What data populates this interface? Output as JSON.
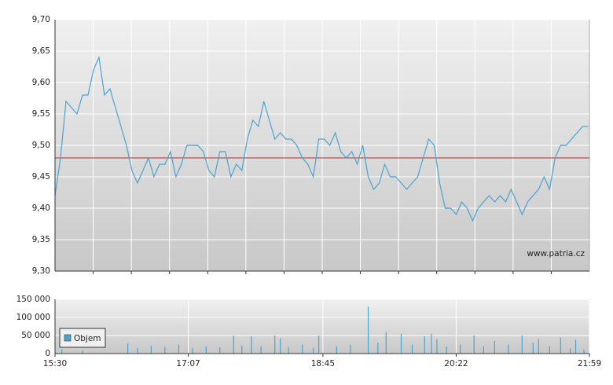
{
  "chart_data": [
    {
      "type": "line",
      "x": [
        930,
        934,
        938,
        942,
        946,
        950,
        954,
        958,
        962,
        966,
        970,
        974,
        978,
        982,
        986,
        990,
        994,
        998,
        1002,
        1006,
        1010,
        1014,
        1018,
        1022,
        1026,
        1030,
        1034,
        1038,
        1042,
        1046,
        1050,
        1054,
        1058,
        1062,
        1066,
        1070,
        1074,
        1078,
        1082,
        1086,
        1090,
        1094,
        1098,
        1102,
        1106,
        1110,
        1114,
        1118,
        1122,
        1126,
        1130,
        1134,
        1138,
        1142,
        1146,
        1150,
        1154,
        1158,
        1162,
        1166,
        1170,
        1174,
        1178,
        1182,
        1186,
        1190,
        1194,
        1198,
        1202,
        1206,
        1210,
        1214,
        1218,
        1222,
        1226,
        1230,
        1234,
        1238,
        1242,
        1246,
        1250,
        1254,
        1258,
        1262,
        1266,
        1270,
        1274,
        1278,
        1282,
        1286,
        1290,
        1294,
        1298,
        1302,
        1306,
        1310,
        1314,
        1318
      ],
      "series": [
        {
          "color": "#4ba3cf",
          "values": [
            9.42,
            9.48,
            9.57,
            9.56,
            9.55,
            9.58,
            9.58,
            9.62,
            9.64,
            9.58,
            9.59,
            9.56,
            9.53,
            9.5,
            9.46,
            9.44,
            9.46,
            9.48,
            9.45,
            9.47,
            9.47,
            9.49,
            9.45,
            9.47,
            9.5,
            9.5,
            9.5,
            9.49,
            9.46,
            9.45,
            9.49,
            9.49,
            9.45,
            9.47,
            9.46,
            9.51,
            9.54,
            9.53,
            9.57,
            9.54,
            9.51,
            9.52,
            9.51,
            9.51,
            9.5,
            9.48,
            9.47,
            9.45,
            9.51,
            9.51,
            9.5,
            9.52,
            9.49,
            9.48,
            9.49,
            9.47,
            9.5,
            9.45,
            9.43,
            9.44,
            9.47,
            9.45,
            9.45,
            9.44,
            9.43,
            9.44,
            9.45,
            9.48,
            9.51,
            9.5,
            9.44,
            9.4,
            9.4,
            9.39,
            9.41,
            9.4,
            9.38,
            9.4,
            9.41,
            9.42,
            9.41,
            9.42,
            9.41,
            9.43,
            9.41,
            9.39,
            9.41,
            9.42,
            9.43,
            9.45,
            9.43,
            9.48,
            9.5,
            9.5,
            9.51,
            9.52,
            9.53,
            9.53
          ]
        }
      ],
      "reference_line": 9.48,
      "reference_color": "#cc2222",
      "annotation": "www.patria.cz",
      "xlim": [
        930,
        1319
      ],
      "ylim": [
        9.3,
        9.7
      ],
      "yticks": [
        {
          "value": 9.3,
          "label": "9,30"
        },
        {
          "value": 9.35,
          "label": "9,35"
        },
        {
          "value": 9.4,
          "label": "9,40"
        },
        {
          "value": 9.45,
          "label": "9,45"
        },
        {
          "value": 9.5,
          "label": "9,50"
        },
        {
          "value": 9.55,
          "label": "9,55"
        },
        {
          "value": 9.6,
          "label": "9,60"
        },
        {
          "value": 9.65,
          "label": "9,65"
        },
        {
          "value": 9.7,
          "label": "9,70"
        }
      ],
      "grid": true
    },
    {
      "type": "bar",
      "x": [
        935,
        950,
        983,
        990,
        1000,
        1010,
        1020,
        1030,
        1040,
        1050,
        1060,
        1066,
        1073,
        1080,
        1090,
        1094,
        1100,
        1110,
        1118,
        1122,
        1135,
        1145,
        1158,
        1165,
        1171,
        1182,
        1190,
        1199,
        1204,
        1208,
        1215,
        1225,
        1235,
        1242,
        1250,
        1260,
        1270,
        1278,
        1282,
        1290,
        1298,
        1305,
        1309,
        1315
      ],
      "series": [
        {
          "name": "Objem",
          "color": "#4ba3cf",
          "values": [
            12000,
            8000,
            28000,
            15000,
            22000,
            18000,
            25000,
            15000,
            20000,
            18000,
            50000,
            22000,
            48000,
            20000,
            50000,
            42000,
            18000,
            25000,
            15000,
            50000,
            20000,
            25000,
            130000,
            30000,
            60000,
            55000,
            25000,
            48000,
            55000,
            40000,
            20000,
            25000,
            50000,
            20000,
            35000,
            25000,
            50000,
            30000,
            40000,
            20000,
            45000,
            15000,
            38000,
            10000
          ]
        }
      ],
      "xlim": [
        930,
        1319
      ],
      "xticks": [
        {
          "value": 930,
          "label": "15:30"
        },
        {
          "value": 1027,
          "label": "17:07"
        },
        {
          "value": 1125,
          "label": "18:45"
        },
        {
          "value": 1222,
          "label": "20:22"
        },
        {
          "value": 1319,
          "label": "21:59"
        }
      ],
      "ylim": [
        0,
        150000
      ],
      "yticks": [
        0,
        {
          "value": 50000,
          "label": "50 000"
        },
        {
          "value": 100000,
          "label": "100 000"
        },
        {
          "value": 150000,
          "label": "150 000"
        }
      ],
      "grid": true,
      "legend": "lower-left"
    }
  ]
}
